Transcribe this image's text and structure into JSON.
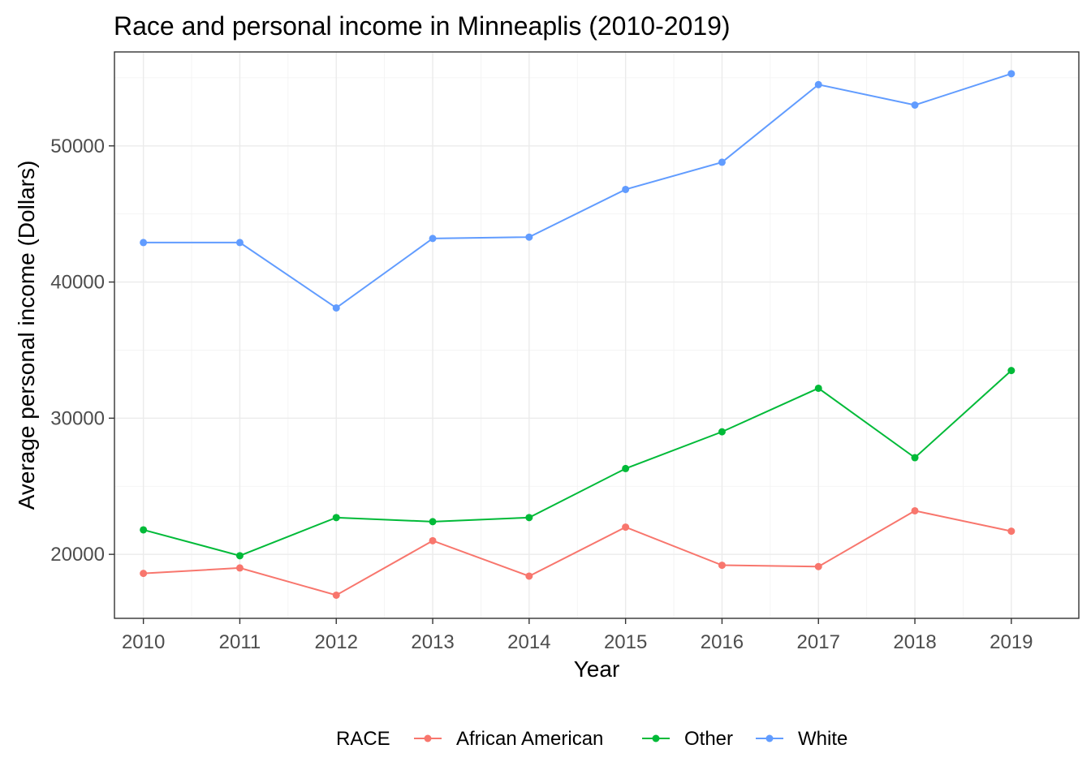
{
  "chart_data": {
    "type": "line",
    "title": "Race and personal income in Minneaplis (2010-2019)",
    "xlabel": "Year",
    "ylabel": "Average personal income (Dollars)",
    "x": [
      2010,
      2011,
      2012,
      2013,
      2014,
      2015,
      2016,
      2017,
      2018,
      2019
    ],
    "x_tick_labels": [
      "2010",
      "2011",
      "2012",
      "2013",
      "2014",
      "2015",
      "2016",
      "2017",
      "2018",
      "2019"
    ],
    "y_ticks": [
      20000,
      30000,
      40000,
      50000
    ],
    "y_tick_labels": [
      "20000",
      "30000",
      "40000",
      "50000"
    ],
    "xlim": [
      2009.7,
      2019.7
    ],
    "ylim": [
      15300,
      56900
    ],
    "grid": true,
    "legend": {
      "title": "RACE",
      "position": "bottom"
    },
    "series": [
      {
        "name": "African American",
        "color": "#F8766D",
        "values": [
          18600,
          19000,
          17000,
          21000,
          18400,
          22000,
          19200,
          19100,
          23200,
          21700
        ]
      },
      {
        "name": "Other",
        "color": "#00BA38",
        "values": [
          21800,
          19900,
          22700,
          22400,
          22700,
          26300,
          29000,
          32200,
          27100,
          33500
        ]
      },
      {
        "name": "White",
        "color": "#619CFF",
        "values": [
          42900,
          42900,
          38100,
          43200,
          43300,
          46800,
          48800,
          54500,
          53000,
          55300
        ]
      }
    ]
  }
}
